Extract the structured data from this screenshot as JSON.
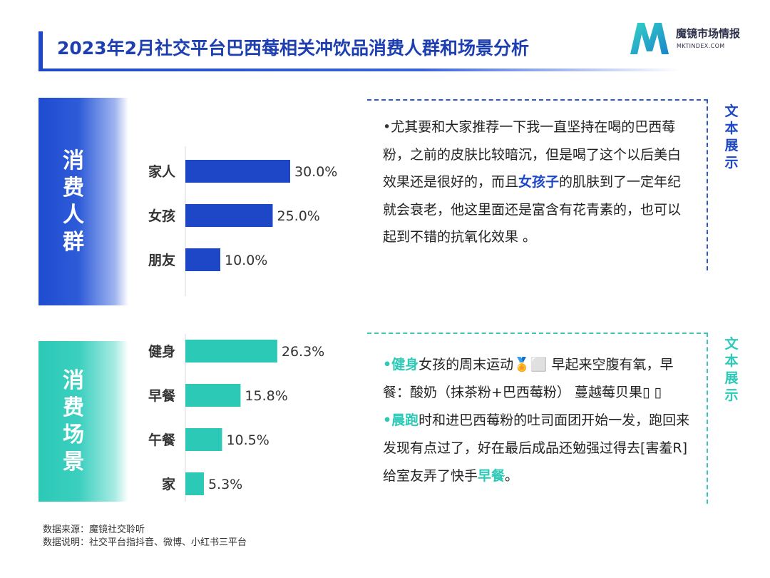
{
  "title": "2023年2月社交平台巴西莓相关冲饮品消费人群和场景分析",
  "logo": {
    "name_cn": "魔镜市场情报",
    "domain": "MKTINDEX.COM"
  },
  "sections": {
    "crowd": {
      "label": "消费人群",
      "tag": "文本展示"
    },
    "scene": {
      "label": "消费场景",
      "tag": "文本展示"
    }
  },
  "colors": {
    "blue": "#1d47c6",
    "teal": "#2cc9b7"
  },
  "chart_data": [
    {
      "type": "bar",
      "orientation": "horizontal",
      "categories": [
        "家人",
        "女孩",
        "朋友"
      ],
      "values": [
        30.0,
        25.0,
        10.0
      ],
      "value_labels": [
        "30.0%",
        "25.0%",
        "10.0%"
      ],
      "color": "#1d47c6"
    },
    {
      "type": "bar",
      "orientation": "horizontal",
      "categories": [
        "健身",
        "早餐",
        "午餐",
        "家"
      ],
      "values": [
        26.3,
        15.8,
        10.5,
        5.3
      ],
      "value_labels": [
        "26.3%",
        "15.8%",
        "10.5%",
        "5.3%"
      ],
      "color": "#2cc9b7"
    }
  ],
  "box1": {
    "bullet": "•",
    "text_a": "尤其要和大家推荐一下我一直坚持在喝的巴西莓粉，之前的皮肤比较暗沉，但是喝了这个以后美白效果还是很好的，而且",
    "highlight": "女孩子",
    "text_b": "的肌肤到了一定年纪就会衰老，他这里面还是富含有花青素的，也可以起到不错的抗氧化效果 。"
  },
  "box2": {
    "bullet": "•",
    "p1_highlight": "健身",
    "p1_text": "女孩的周末运动🏅⬜ 早起来空腹有氧，早餐：酸奶（抹茶粉+巴西莓粉） 蔓越莓贝果▯ ▯",
    "p2_highlight": "晨跑",
    "p2_text": "时和进巴西莓粉的吐司面团开始一发，跑回来发现有点过了，好在最后成品还勉强过得去[害羞R]给室友弄了快手",
    "p2_highlight_end": "早餐",
    "p2_end": "。"
  },
  "footer": {
    "source": "数据来源：魔镜社交聆听",
    "note": "数据说明：社交平台指抖音、微博、小红书三平台"
  }
}
